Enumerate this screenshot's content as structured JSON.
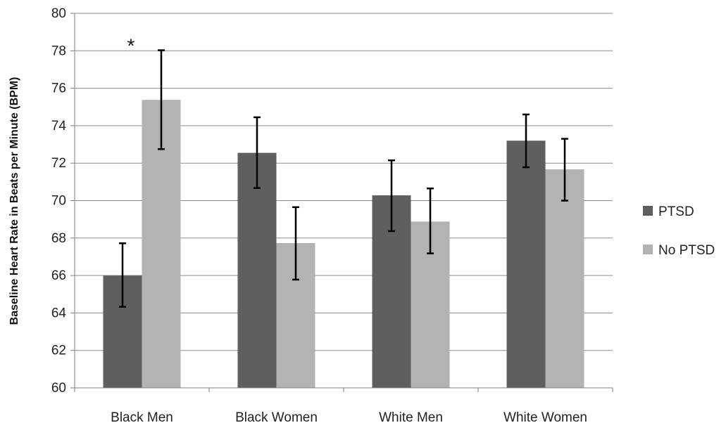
{
  "chart_data": {
    "type": "bar",
    "title": "",
    "xlabel": "",
    "ylabel": "Baseline Heart Rate in Beats per Minute (BPM)",
    "ylim": [
      60,
      80
    ],
    "yticks": [
      60,
      62,
      64,
      66,
      68,
      70,
      72,
      74,
      76,
      78,
      80
    ],
    "grid": true,
    "legend_position": "right",
    "categories": [
      "Black Men",
      "Black Women",
      "White Men",
      "White Women"
    ],
    "series": [
      {
        "name": "PTSD",
        "color": "#5f5f5f",
        "values": [
          66.0,
          72.55,
          70.28,
          73.2
        ],
        "error_low": [
          64.33,
          70.67,
          68.37,
          71.78
        ],
        "error_high": [
          67.72,
          74.45,
          72.15,
          74.6
        ]
      },
      {
        "name": "No PTSD",
        "color": "#b3b3b3",
        "values": [
          75.38,
          67.73,
          68.88,
          71.67
        ],
        "error_low": [
          72.75,
          65.78,
          67.18,
          70.0
        ],
        "error_high": [
          78.03,
          69.65,
          70.65,
          73.3
        ]
      }
    ],
    "annotations": [
      {
        "text": "*",
        "category_index": 0,
        "series_index": 0,
        "y": 78.3
      }
    ]
  }
}
